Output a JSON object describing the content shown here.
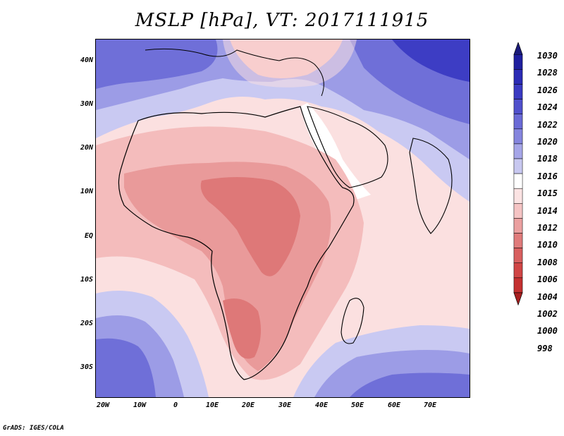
{
  "title": "MSLP [hPa], VT: 2017111915",
  "credit": "GrADS: IGES/COLA",
  "y_labels": [
    "40N",
    "30N",
    "20N",
    "10N",
    "EQ",
    "10S",
    "20S",
    "30S"
  ],
  "x_labels": [
    "20W",
    "10W",
    "0",
    "10E",
    "20E",
    "30E",
    "40E",
    "50E",
    "60E",
    "70E"
  ],
  "colorbar": {
    "levels": [
      "1030",
      "1028",
      "1026",
      "1024",
      "1022",
      "1020",
      "1018",
      "1016",
      "1015",
      "1014",
      "1012",
      "1010",
      "1008",
      "1006",
      "1004",
      "1002",
      "1000",
      "998"
    ],
    "colors": [
      "#1a1a7a",
      "#1f1f9e",
      "#2b2bb5",
      "#3a3ac2",
      "#5050cc",
      "#6a6ad6",
      "#8585de",
      "#a6a6e8",
      "#c8c8f0",
      "#ffffff",
      "#fbe3e3",
      "#f5c4c4",
      "#eba0a0",
      "#e07b7b",
      "#d85f5f",
      "#d04545",
      "#c43030",
      "#a81f1f"
    ]
  },
  "field_colors": {
    "high_far": "#3d3dc4",
    "high": "#6f6fd8",
    "high_mid": "#9c9ce6",
    "high_low": "#c9c9f2",
    "neutral": "#ffffff",
    "low_1": "#fbe0e0",
    "low_2": "#f4bcbc",
    "low_3": "#e99a9a",
    "low_4": "#de7878"
  }
}
